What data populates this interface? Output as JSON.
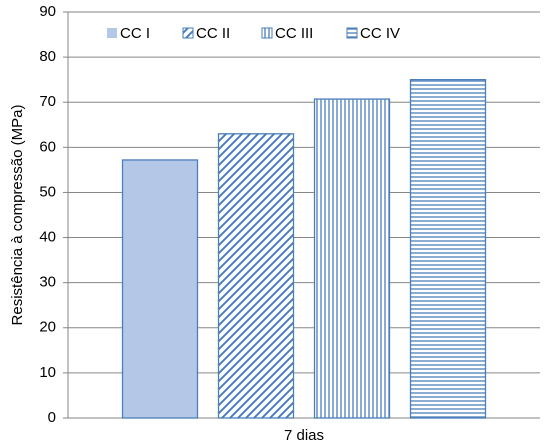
{
  "chart_data": {
    "type": "bar",
    "y_label": "Resistência à compressão (MPa)",
    "categories": [
      "7 dias"
    ],
    "series": [
      {
        "name": "CC I",
        "color": "#b4c7e7",
        "pattern": "solid",
        "values": [
          57.2
        ]
      },
      {
        "name": "CC II",
        "color": "#4a7ebb",
        "pattern": "diagonal",
        "values": [
          63
        ]
      },
      {
        "name": "CC III",
        "color": "#4a7ebb",
        "pattern": "vertical",
        "values": [
          70.7
        ]
      },
      {
        "name": "CC IV",
        "color": "#4a7ebb",
        "pattern": "horizontal",
        "values": [
          75
        ]
      }
    ],
    "ylim": [
      0,
      90
    ],
    "yticks": [
      0,
      10,
      20,
      30,
      40,
      50,
      60,
      70,
      80,
      90
    ],
    "grid": true
  }
}
